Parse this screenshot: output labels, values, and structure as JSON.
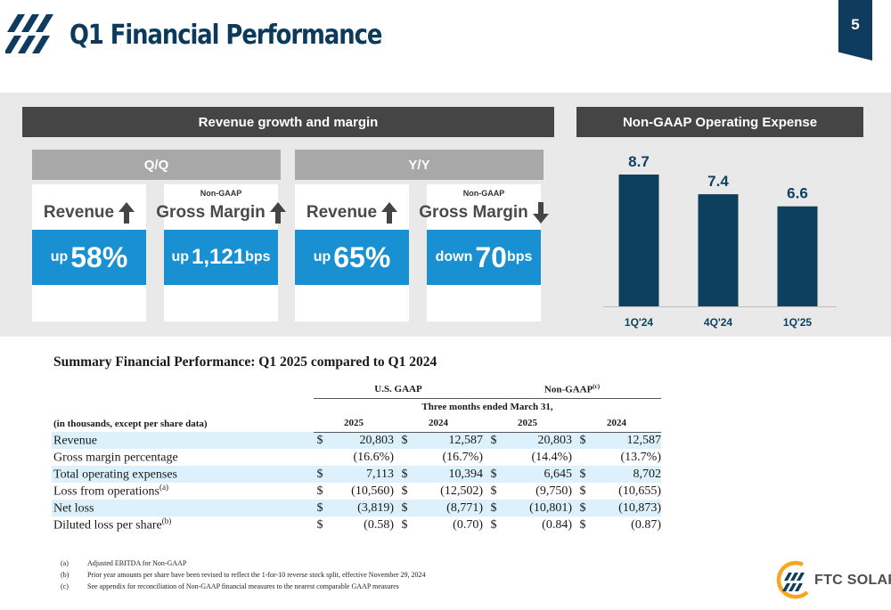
{
  "header": {
    "title": "Q1 Financial Performance",
    "page_number": "5"
  },
  "revenue_section": {
    "title": "Revenue growth and margin",
    "groups": [
      {
        "title": "Q/Q",
        "cards": [
          {
            "small_label": "",
            "label": "Revenue",
            "arrow": "arrow-up-icon",
            "direction": "up",
            "value": "58%",
            "unit": ""
          },
          {
            "small_label": "Non-GAAP",
            "label": "Gross Margin",
            "arrow": "arrow-up-icon",
            "direction": "up",
            "value": "1,121",
            "unit": "bps"
          }
        ]
      },
      {
        "title": "Y/Y",
        "cards": [
          {
            "small_label": "",
            "label": "Revenue",
            "arrow": "arrow-up-icon",
            "direction": "up",
            "value": "65%",
            "unit": ""
          },
          {
            "small_label": "Non-GAAP",
            "label": "Gross Margin",
            "arrow": "arrow-down-icon",
            "direction": "down",
            "value": "70",
            "unit": "bps"
          }
        ]
      }
    ]
  },
  "chart_data": {
    "type": "bar",
    "title": "Non-GAAP Operating Expense",
    "categories": [
      "1Q'24",
      "4Q'24",
      "1Q'25"
    ],
    "values": [
      8.7,
      7.4,
      6.6
    ],
    "data_labels": [
      "8.7",
      "7.4",
      "6.6"
    ],
    "ylim": [
      0,
      8.7
    ],
    "grid": false,
    "color": "#0d3f5f"
  },
  "summary": {
    "title": "Summary Financial Performance: Q1 2025 compared to Q1 2024",
    "header": {
      "gaap": "U.S. GAAP",
      "nongaap": "Non-GAAP",
      "nongaap_sup": "(c)",
      "period": "Three months ended March 31,",
      "units": "(in thousands, except per share data)",
      "years": [
        "2025",
        "2024",
        "2025",
        "2024"
      ]
    },
    "rows": [
      {
        "label": "Revenue",
        "sup": "",
        "shaded": true,
        "cells": [
          {
            "cur": "$",
            "val": "20,803"
          },
          {
            "cur": "$",
            "val": "12,587"
          },
          {
            "cur": "$",
            "val": "20,803"
          },
          {
            "cur": "$",
            "val": "12,587"
          }
        ]
      },
      {
        "label": "Gross margin percentage",
        "sup": "",
        "shaded": false,
        "cells": [
          {
            "cur": "",
            "val": "(16.6%)"
          },
          {
            "cur": "",
            "val": "(16.7%)"
          },
          {
            "cur": "",
            "val": "(14.4%)"
          },
          {
            "cur": "",
            "val": "(13.7%)"
          }
        ]
      },
      {
        "label": "Total operating expenses",
        "sup": "",
        "shaded": true,
        "cells": [
          {
            "cur": "$",
            "val": "7,113"
          },
          {
            "cur": "$",
            "val": "10,394"
          },
          {
            "cur": "$",
            "val": "6,645"
          },
          {
            "cur": "$",
            "val": "8,702"
          }
        ]
      },
      {
        "label": "Loss from operations",
        "sup": "(a)",
        "shaded": false,
        "cells": [
          {
            "cur": "$",
            "val": "(10,560)"
          },
          {
            "cur": "$",
            "val": "(12,502)"
          },
          {
            "cur": "$",
            "val": "(9,750)"
          },
          {
            "cur": "$",
            "val": "(10,655)"
          }
        ]
      },
      {
        "label": "Net loss",
        "sup": "",
        "shaded": true,
        "cells": [
          {
            "cur": "$",
            "val": "(3,819)"
          },
          {
            "cur": "$",
            "val": "(8,771)"
          },
          {
            "cur": "$",
            "val": "(10,801)"
          },
          {
            "cur": "$",
            "val": "(10,873)"
          }
        ]
      },
      {
        "label": "Diluted loss per share",
        "sup": "(b)",
        "shaded": false,
        "cells": [
          {
            "cur": "$",
            "val": "(0.58)"
          },
          {
            "cur": "$",
            "val": "(0.70)"
          },
          {
            "cur": "$",
            "val": "(0.84)"
          },
          {
            "cur": "$",
            "val": "(0.87)"
          }
        ]
      }
    ]
  },
  "footnotes": [
    {
      "key": "(a)",
      "text": "Adjusted EBITDA for Non-GAAP"
    },
    {
      "key": "(b)",
      "text": "Prior year amounts per share have been revised to reflect the 1-for-10 reverse stock split, effective November 29, 2024"
    },
    {
      "key": "(c)",
      "text": "See appendix for reconciliation of Non-GAAP financial measures to the nearest comparable GAAP measures"
    }
  ],
  "logo": {
    "text": "FTC SOLAR",
    "brand_color": "#f5a623"
  },
  "colors": {
    "title": "#0b3a5c",
    "accent_blue": "#1890d1",
    "header_dark": "#454545",
    "header_grey": "#a8a8a8",
    "bar": "#0d3f5f",
    "row_shade": "#dcf1fb"
  }
}
